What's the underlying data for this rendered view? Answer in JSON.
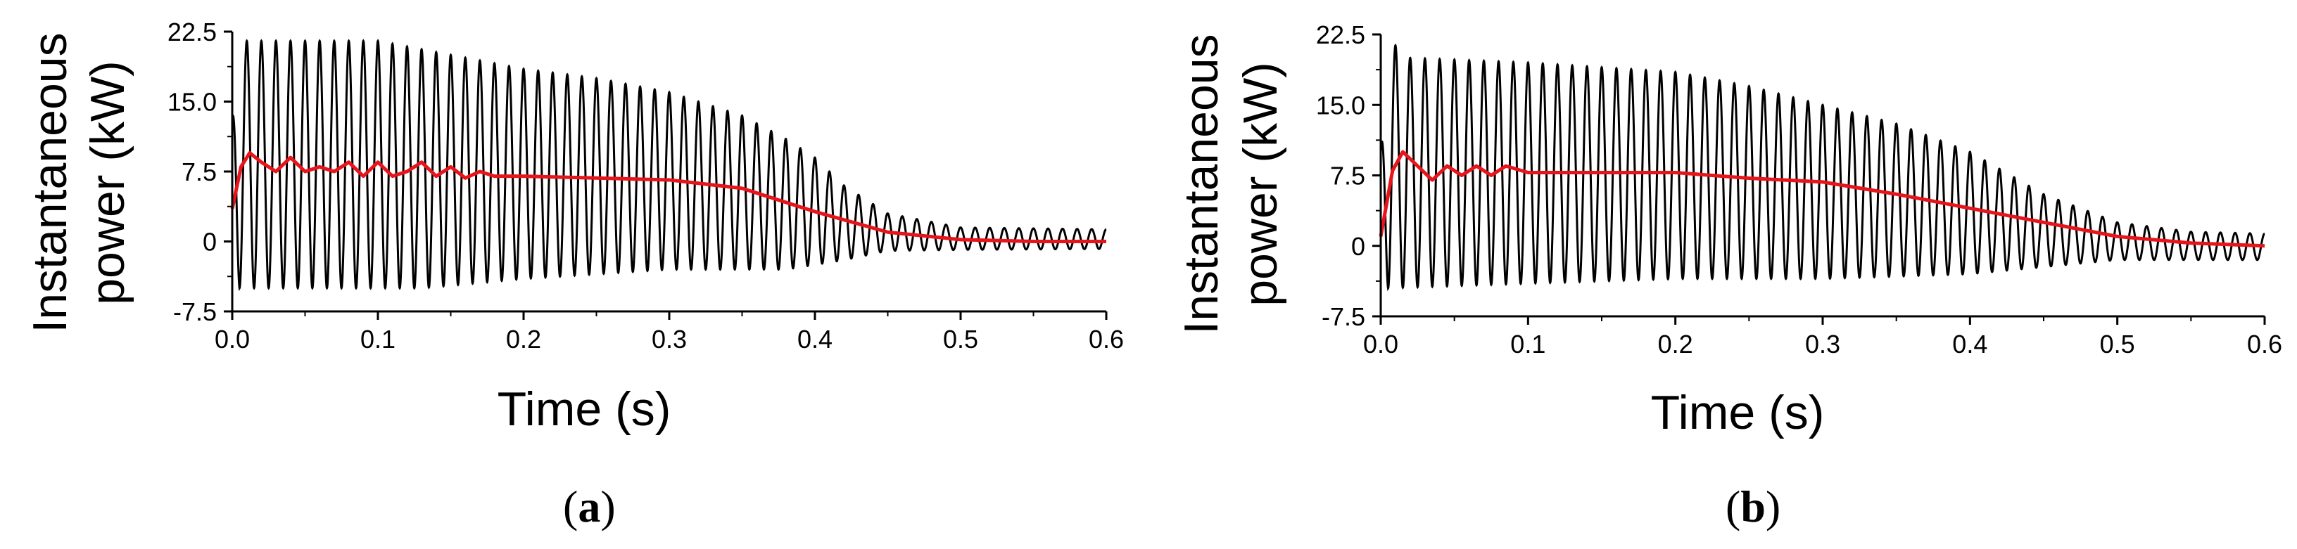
{
  "chart_data": [
    {
      "type": "line",
      "panel_label": "a",
      "xlabel": "Time (s)",
      "ylabel_line1": "Instantaneous",
      "ylabel_line2": "power (kW)",
      "xlim": [
        0.0,
        0.6
      ],
      "ylim": [
        -7.5,
        22.5
      ],
      "x_ticks": [
        "0.0",
        "0.1",
        "0.2",
        "0.3",
        "0.4",
        "0.5",
        "0.6"
      ],
      "y_ticks": [
        "-7.5",
        "0",
        "7.5",
        "15.0",
        "22.5"
      ],
      "grid": false,
      "series": [
        {
          "color": "#000000",
          "style": "oscillating",
          "frequency_hz": 100,
          "upper_envelope": [
            [
              0.0,
              13.0
            ],
            [
              0.005,
              21.5
            ],
            [
              0.1,
              21.5
            ],
            [
              0.15,
              20.0
            ],
            [
              0.2,
              18.5
            ],
            [
              0.25,
              17.5
            ],
            [
              0.3,
              16.0
            ],
            [
              0.35,
              13.5
            ],
            [
              0.38,
              11.0
            ],
            [
              0.4,
              9.0
            ],
            [
              0.42,
              6.0
            ],
            [
              0.45,
              3.0
            ],
            [
              0.5,
              1.5
            ],
            [
              0.6,
              1.3
            ]
          ],
          "lower_envelope": [
            [
              0.0,
              -1.0
            ],
            [
              0.005,
              -5.0
            ],
            [
              0.13,
              -5.0
            ],
            [
              0.2,
              -4.0
            ],
            [
              0.3,
              -3.0
            ],
            [
              0.38,
              -3.0
            ],
            [
              0.42,
              -2.0
            ],
            [
              0.45,
              -1.0
            ],
            [
              0.5,
              -0.9
            ],
            [
              0.6,
              -0.8
            ]
          ]
        },
        {
          "color": "#e8141b",
          "style": "average",
          "points": [
            [
              0.0,
              3.5
            ],
            [
              0.006,
              8.0
            ],
            [
              0.012,
              9.5
            ],
            [
              0.02,
              8.5
            ],
            [
              0.03,
              7.5
            ],
            [
              0.04,
              9.0
            ],
            [
              0.05,
              7.5
            ],
            [
              0.06,
              8.0
            ],
            [
              0.07,
              7.5
            ],
            [
              0.08,
              8.5
            ],
            [
              0.09,
              7.0
            ],
            [
              0.1,
              8.5
            ],
            [
              0.11,
              7.0
            ],
            [
              0.12,
              7.5
            ],
            [
              0.13,
              8.5
            ],
            [
              0.14,
              7.0
            ],
            [
              0.15,
              8.0
            ],
            [
              0.16,
              6.8
            ],
            [
              0.17,
              7.5
            ],
            [
              0.18,
              7.0
            ],
            [
              0.2,
              7.0
            ],
            [
              0.25,
              6.8
            ],
            [
              0.3,
              6.6
            ],
            [
              0.35,
              5.7
            ],
            [
              0.4,
              3.2
            ],
            [
              0.45,
              1.0
            ],
            [
              0.5,
              0.2
            ],
            [
              0.55,
              0.0
            ],
            [
              0.6,
              0.0
            ]
          ]
        }
      ]
    },
    {
      "type": "line",
      "panel_label": "b",
      "xlabel": "Time (s)",
      "ylabel_line1": "Instantaneous",
      "ylabel_line2": "power (kW)",
      "xlim": [
        0.0,
        0.6
      ],
      "ylim": [
        -7.5,
        22.5
      ],
      "x_ticks": [
        "0.0",
        "0.1",
        "0.2",
        "0.3",
        "0.4",
        "0.5",
        "0.6"
      ],
      "y_ticks": [
        "-7.5",
        "0",
        "7.5",
        "15.0",
        "22.5"
      ],
      "grid": false,
      "series": [
        {
          "color": "#000000",
          "style": "oscillating",
          "frequency_hz": 100,
          "upper_envelope": [
            [
              0.0,
              10.0
            ],
            [
              0.005,
              22.0
            ],
            [
              0.02,
              20.0
            ],
            [
              0.1,
              19.5
            ],
            [
              0.2,
              18.5
            ],
            [
              0.25,
              17.0
            ],
            [
              0.3,
              15.0
            ],
            [
              0.35,
              13.0
            ],
            [
              0.4,
              10.0
            ],
            [
              0.45,
              5.5
            ],
            [
              0.5,
              2.5
            ],
            [
              0.55,
              1.5
            ],
            [
              0.6,
              1.3
            ]
          ],
          "lower_envelope": [
            [
              0.0,
              -1.0
            ],
            [
              0.005,
              -4.5
            ],
            [
              0.1,
              -4.0
            ],
            [
              0.2,
              -3.5
            ],
            [
              0.3,
              -3.5
            ],
            [
              0.4,
              -3.0
            ],
            [
              0.5,
              -1.5
            ],
            [
              0.6,
              -1.5
            ]
          ]
        },
        {
          "color": "#e8141b",
          "style": "average",
          "points": [
            [
              0.0,
              1.0
            ],
            [
              0.008,
              8.0
            ],
            [
              0.015,
              10.0
            ],
            [
              0.025,
              8.5
            ],
            [
              0.035,
              7.0
            ],
            [
              0.045,
              8.5
            ],
            [
              0.055,
              7.5
            ],
            [
              0.065,
              8.5
            ],
            [
              0.075,
              7.5
            ],
            [
              0.085,
              8.5
            ],
            [
              0.1,
              7.8
            ],
            [
              0.15,
              7.8
            ],
            [
              0.2,
              7.8
            ],
            [
              0.25,
              7.2
            ],
            [
              0.3,
              6.8
            ],
            [
              0.35,
              5.5
            ],
            [
              0.4,
              4.0
            ],
            [
              0.45,
              2.5
            ],
            [
              0.5,
              1.0
            ],
            [
              0.55,
              0.3
            ],
            [
              0.6,
              0.0
            ]
          ]
        }
      ]
    }
  ]
}
